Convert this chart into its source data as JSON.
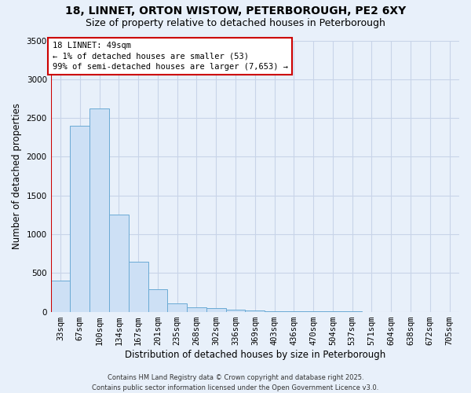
{
  "title1": "18, LINNET, ORTON WISTOW, PETERBOROUGH, PE2 6XY",
  "title2": "Size of property relative to detached houses in Peterborough",
  "xlabel": "Distribution of detached houses by size in Peterborough",
  "ylabel": "Number of detached properties",
  "categories": [
    "33sqm",
    "67sqm",
    "100sqm",
    "134sqm",
    "167sqm",
    "201sqm",
    "235sqm",
    "268sqm",
    "302sqm",
    "336sqm",
    "369sqm",
    "403sqm",
    "436sqm",
    "470sqm",
    "504sqm",
    "537sqm",
    "571sqm",
    "604sqm",
    "638sqm",
    "672sqm",
    "705sqm"
  ],
  "values": [
    400,
    2400,
    2620,
    1250,
    640,
    285,
    110,
    60,
    50,
    30,
    15,
    8,
    5,
    3,
    2,
    1,
    0,
    0,
    0,
    0,
    0
  ],
  "bar_color": "#cde0f5",
  "bar_edge_color": "#6aaad4",
  "bg_color": "#e8f0fa",
  "grid_color": "#c8d4e8",
  "annotation_text": "18 LINNET: 49sqm\n← 1% of detached houses are smaller (53)\n99% of semi-detached houses are larger (7,653) →",
  "red_line_color": "#cc0000",
  "annotation_box_color": "#ffffff",
  "annotation_box_edge": "#cc0000",
  "ylim": [
    0,
    3500
  ],
  "yticks": [
    0,
    500,
    1000,
    1500,
    2000,
    2500,
    3000,
    3500
  ],
  "footer1": "Contains HM Land Registry data © Crown copyright and database right 2025.",
  "footer2": "Contains public sector information licensed under the Open Government Licence v3.0.",
  "title1_fontsize": 10,
  "title2_fontsize": 9,
  "xlabel_fontsize": 8.5,
  "ylabel_fontsize": 8.5,
  "tick_fontsize": 7.5,
  "footer_fontsize": 6,
  "fig_bg_color": "#e8f0fa"
}
